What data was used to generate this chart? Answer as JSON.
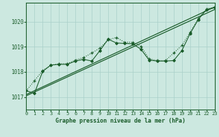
{
  "title": "Graphe pression niveau de la mer (hPa)",
  "bg_color": "#cce8e0",
  "grid_color": "#a8cfc8",
  "line_color": "#1a5c2a",
  "xlim": [
    0,
    23
  ],
  "ylim": [
    1016.5,
    1020.75
  ],
  "yticks": [
    1017,
    1018,
    1019,
    1020
  ],
  "xticks": [
    0,
    1,
    2,
    3,
    4,
    5,
    6,
    7,
    8,
    9,
    10,
    11,
    12,
    13,
    14,
    15,
    16,
    17,
    18,
    19,
    20,
    21,
    22,
    23
  ],
  "hours": [
    0,
    1,
    2,
    3,
    4,
    5,
    6,
    7,
    8,
    9,
    10,
    11,
    12,
    13,
    14,
    15,
    16,
    17,
    18,
    19,
    20,
    21,
    22,
    23
  ],
  "pressure_dotted": [
    1017.25,
    1017.65,
    1018.05,
    1018.27,
    1018.32,
    1018.33,
    1018.47,
    1018.57,
    1018.75,
    1018.95,
    1019.27,
    1019.37,
    1019.18,
    1019.18,
    1019.02,
    1018.52,
    1018.45,
    1018.45,
    1018.75,
    1019.05,
    1019.57,
    1020.12,
    1020.5,
    1020.58
  ],
  "pressure_marked": [
    1017.25,
    1017.15,
    1018.02,
    1018.27,
    1018.3,
    1018.3,
    1018.43,
    1018.5,
    1018.43,
    1018.85,
    1019.3,
    1019.15,
    1019.13,
    1019.12,
    1018.9,
    1018.47,
    1018.43,
    1018.43,
    1018.45,
    1018.85,
    1019.52,
    1020.08,
    1020.48,
    1020.55
  ],
  "trend1_x": [
    0,
    23
  ],
  "trend1_y": [
    1017.1,
    1020.58
  ],
  "trend2_x": [
    0,
    23
  ],
  "trend2_y": [
    1017.05,
    1020.48
  ]
}
